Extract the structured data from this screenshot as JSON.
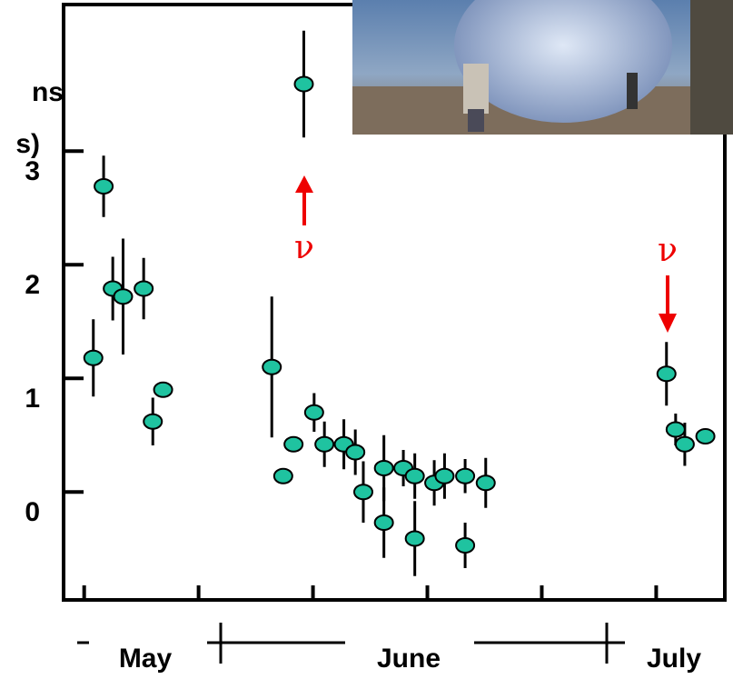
{
  "chart_data": {
    "type": "scatter",
    "y_label_fragments": [
      "ns",
      "s)"
    ],
    "xlim": [
      -1.8,
      56
    ],
    "xticks": [
      0,
      10,
      20,
      30,
      40,
      50
    ],
    "ylim": [
      -0.95,
      4.29
    ],
    "yticks": [
      0,
      1,
      2,
      3
    ],
    "month_labels": [
      "May",
      "June",
      "July"
    ],
    "annotations": [
      "ν",
      "ν"
    ],
    "series": [
      {
        "color": "#1fc3a0",
        "x": [
          0.8,
          1.7,
          2.5,
          3.4,
          5.2,
          6.0,
          6.9,
          19.2,
          16.4,
          17.4,
          18.3,
          20.1,
          21.0,
          22.7,
          23.7,
          24.4,
          26.2,
          26.2,
          27.9,
          28.9,
          28.9,
          30.6,
          31.5,
          33.3,
          33.3,
          35.1,
          50.9,
          51.7,
          52.5,
          54.3
        ],
        "values": [
          1.18,
          2.69,
          1.79,
          1.72,
          1.79,
          0.62,
          0.9,
          3.59,
          1.1,
          0.14,
          0.42,
          0.7,
          0.42,
          0.42,
          0.35,
          0.0,
          0.21,
          -0.27,
          0.21,
          0.14,
          -0.41,
          0.08,
          0.14,
          0.14,
          -0.47,
          0.08,
          1.04,
          0.55,
          0.42,
          0.49
        ],
        "errors": [
          0.34,
          0.27,
          0.28,
          0.51,
          0.27,
          0.21,
          null,
          0.47,
          0.62,
          null,
          null,
          0.17,
          0.2,
          0.22,
          0.2,
          0.27,
          0.29,
          0.31,
          0.16,
          0.2,
          0.33,
          0.2,
          0.2,
          0.15,
          0.2,
          0.22,
          0.28,
          0.14,
          0.19,
          null
        ]
      }
    ]
  }
}
